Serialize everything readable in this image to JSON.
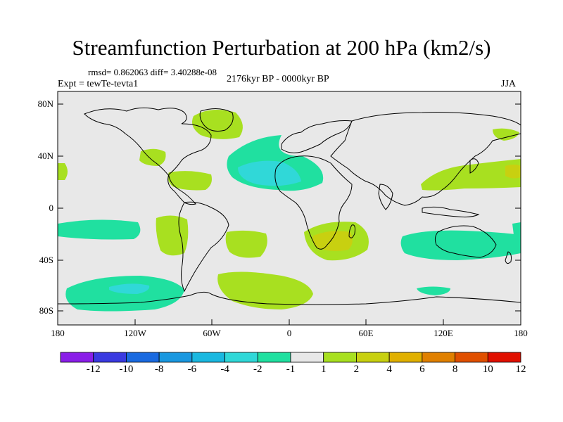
{
  "title": "Streamfunction Perturbation at 200 hPa (km2/s)",
  "stats": "rmsd= 0.862063 diff= 3.40288e-08",
  "experiment": "Expt = tewTe-tevta1",
  "period": "2176kyr BP - 0000kyr BP",
  "season": "JJA",
  "y_axis_labels": [
    "80N",
    "40N",
    "0",
    "40S",
    "80S"
  ],
  "x_axis_labels": [
    "180",
    "120W",
    "60W",
    "0",
    "60E",
    "120E",
    "180"
  ],
  "colorbar": {
    "labels": [
      "-12",
      "-10",
      "-8",
      "-6",
      "-4",
      "-2",
      "-1",
      "1",
      "2",
      "4",
      "6",
      "8",
      "10",
      "12"
    ],
    "colors": [
      "#8a1ee8",
      "#3a3ae0",
      "#1a6ae0",
      "#1a98e0",
      "#1ab8e0",
      "#30d8d8",
      "#20e0a0",
      "#e8e8e8",
      "#a8e020",
      "#c8d010",
      "#e0b000",
      "#e08000",
      "#e05000",
      "#e01000"
    ]
  },
  "map_colors": {
    "background": "#e8e8e8",
    "green": "#a8e020",
    "teal": "#20e0a0",
    "cyan": "#30d8d8",
    "yellow": "#c8d010",
    "coast": "#000000"
  }
}
